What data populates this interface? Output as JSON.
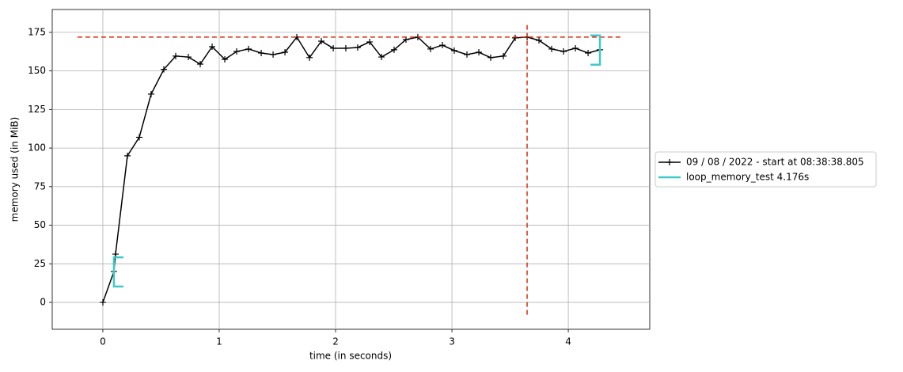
{
  "chart_data": {
    "type": "line",
    "xlabel": "time (in seconds)",
    "ylabel": "memory used (in MiB)",
    "xlim": [
      -0.435,
      4.7
    ],
    "ylim": [
      -17.4,
      189.8
    ],
    "xticks": [
      0,
      1,
      2,
      3,
      4
    ],
    "yticks": [
      0,
      25,
      50,
      75,
      100,
      125,
      150,
      175
    ],
    "grid": true,
    "legend": "right",
    "x": [
      0,
      0.095,
      0.109,
      0.211,
      0.313,
      0.415,
      0.524,
      0.626,
      0.735,
      0.837,
      0.939,
      1.048,
      1.15,
      1.252,
      1.361,
      1.463,
      1.565,
      1.667,
      1.776,
      1.878,
      1.98,
      2.088,
      2.19,
      2.293,
      2.395,
      2.503,
      2.605,
      2.707,
      2.816,
      2.918,
      3.02,
      3.129,
      3.231,
      3.333,
      3.442,
      3.544,
      3.646,
      3.748,
      3.857,
      3.959,
      4.061,
      4.17,
      4.272
    ],
    "series": [
      {
        "name": "09 / 08 / 2022 - start at 08:38:38.805",
        "color": "#000000",
        "values": [
          0,
          20,
          31.3,
          95,
          107,
          135,
          151,
          159.6,
          159,
          154.4,
          165.7,
          157.5,
          162.6,
          164.2,
          161.6,
          160.6,
          162.1,
          171.9,
          158.6,
          169.3,
          164.7,
          164.7,
          165.2,
          168.8,
          159,
          163.7,
          170.3,
          171.9,
          164.2,
          166.7,
          163.2,
          160.6,
          162.1,
          158.6,
          159.6,
          171.4,
          171.9,
          169.8,
          164.2,
          162.6,
          164.7,
          161.6,
          163.7
        ]
      }
    ],
    "brackets": [
      {
        "name": "loop_memory_test 4.176s",
        "color": "#3ec9c9",
        "start": {
          "x": 0.095,
          "y_low": 10.3,
          "y_high": 29.2
        },
        "end": {
          "x": 4.272,
          "y_low": 154,
          "y_high": 173
        }
      }
    ],
    "hlines": [
      {
        "y": 171.9,
        "xmin": -0.218,
        "xmax": 4.47,
        "color": "#d62c0c"
      }
    ],
    "vlines": [
      {
        "x": 3.646,
        "ymin": -8,
        "ymax": 180,
        "color": "#d62c0c"
      }
    ]
  }
}
